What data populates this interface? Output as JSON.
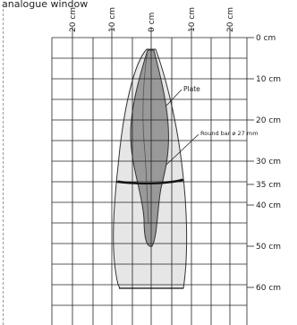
{
  "dialog": {
    "title": "analogue window"
  },
  "diagram": {
    "top_scale": [
      "20 cm",
      "10 cm",
      "0 cm",
      "10 cm",
      "20 cm"
    ],
    "depth_scale": [
      "0 cm",
      "10 cm",
      "20 cm",
      "30 cm",
      "35 cm",
      "40 cm",
      "50 cm",
      "60 cm"
    ],
    "labels": {
      "plate": "Plate",
      "round_bar": "Round bar ø 27 mm"
    },
    "colors": {
      "grid": "#222222",
      "outer_fill": "#e6e6e6",
      "inner_fill": "#999999",
      "plate_fill": "#bdbdbd",
      "outline": "#333333"
    }
  }
}
